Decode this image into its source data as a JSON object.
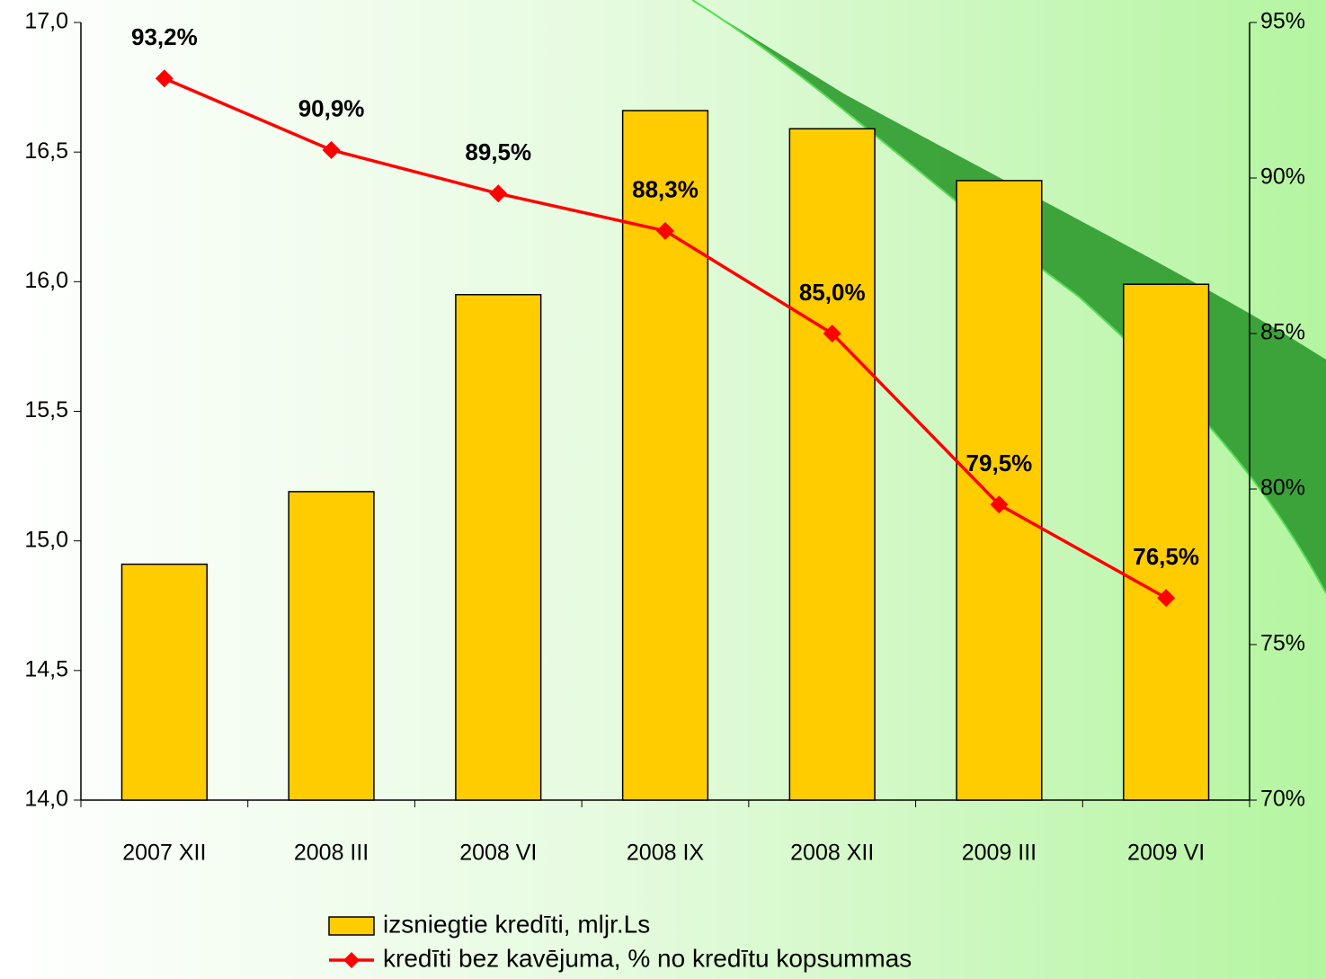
{
  "chart_data": {
    "type": "bar",
    "categories": [
      "2007 XII",
      "2008 III",
      "2008 VI",
      "2008 IX",
      "2008 XII",
      "2009 III",
      "2009 VI"
    ],
    "series": [
      {
        "name": "izsniegtie kredīti, mljr.Ls",
        "type": "bar",
        "color": "#ffcc00",
        "values": [
          14.91,
          15.19,
          15.95,
          16.66,
          16.59,
          16.39,
          15.99
        ]
      },
      {
        "name": "kredīti bez kavējuma, % no kredītu kopsummas",
        "type": "line",
        "axis": "y2",
        "color": "#ff0000",
        "values": [
          93.2,
          90.9,
          89.5,
          88.3,
          85.0,
          79.5,
          76.5
        ],
        "value_labels": [
          "93,2%",
          "90,9%",
          "89,5%",
          "88,3%",
          "85,0%",
          "79,5%",
          "76,5%"
        ]
      }
    ],
    "ylim": [
      14,
      17
    ],
    "yticks": [
      {
        "value": 14,
        "label": "14,0"
      },
      {
        "value": 14.5,
        "label": "14,5"
      },
      {
        "value": 15,
        "label": "15,0"
      },
      {
        "value": 15.5,
        "label": "15,5"
      },
      {
        "value": 16,
        "label": "16,0"
      },
      {
        "value": 16.5,
        "label": "16,5"
      },
      {
        "value": 17,
        "label": "17,0"
      }
    ],
    "y2lim": [
      70,
      95
    ],
    "y2ticks": [
      {
        "value": 70,
        "label": "70%"
      },
      {
        "value": 75,
        "label": "75%"
      },
      {
        "value": 80,
        "label": "80%"
      },
      {
        "value": 85,
        "label": "85%"
      },
      {
        "value": 90,
        "label": "90%"
      },
      {
        "value": 95,
        "label": "95%"
      }
    ],
    "legend": "bottom"
  }
}
